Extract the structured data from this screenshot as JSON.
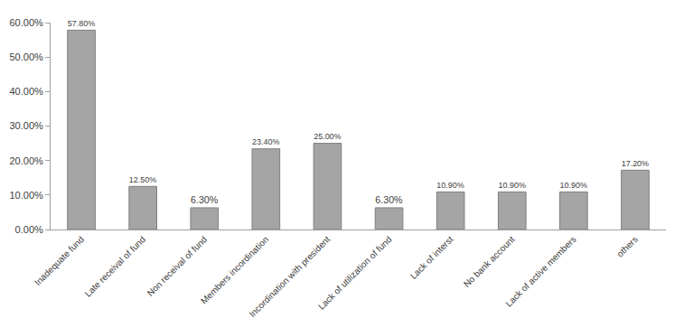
{
  "chart_data": {
    "type": "bar",
    "categories": [
      "Inadequate fund",
      "Late receival of fund",
      "Non receival of fund",
      "Members incordination",
      "Incordination with president",
      "Lack of utilization of fund",
      "Lack of interst",
      "No bank account",
      "Lack of active members",
      "others"
    ],
    "values": [
      57.8,
      12.5,
      6.3,
      23.4,
      25.0,
      6.3,
      10.9,
      10.9,
      10.9,
      17.2
    ],
    "value_labels": [
      "57.80%",
      "12.50%",
      "6.30%",
      "23.40%",
      "25.00%",
      "6.30%",
      "10.90%",
      "10.90%",
      "10.90%",
      "17.20%"
    ],
    "color": "#a5a5a5",
    "ylim": [
      0,
      60
    ],
    "yticks": [
      {
        "value": 0,
        "label": "0.00%"
      },
      {
        "value": 10,
        "label": "10.00%"
      },
      {
        "value": 20,
        "label": "20.00%"
      },
      {
        "value": 30,
        "label": "30.00%"
      },
      {
        "value": 40,
        "label": "40.00%"
      },
      {
        "value": 50,
        "label": "50.00%"
      },
      {
        "value": 60,
        "label": "60.00%"
      }
    ],
    "grid": false,
    "data_labels": true
  }
}
